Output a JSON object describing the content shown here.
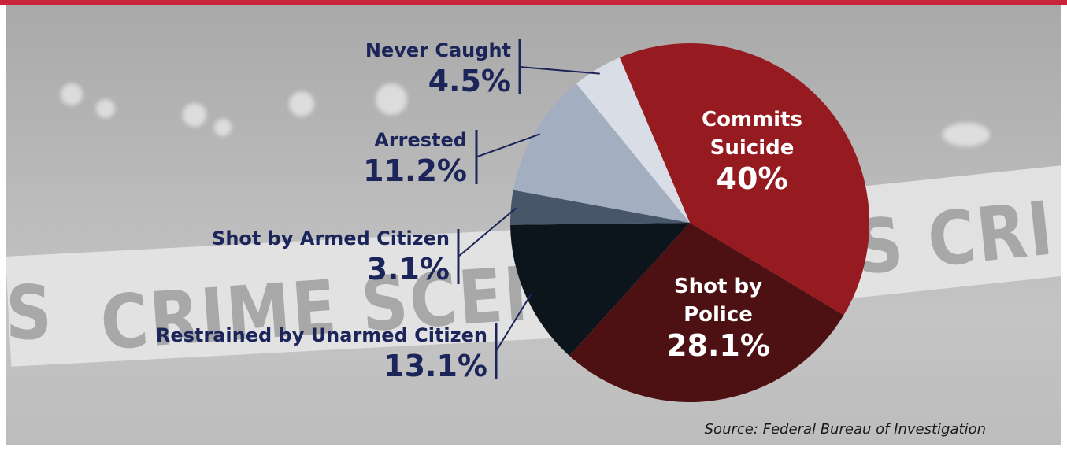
{
  "chart_data": {
    "type": "pie",
    "title": "",
    "slices": [
      {
        "label": "Commits Suicide",
        "label_lines": [
          "Commits",
          "Suicide"
        ],
        "value": 40,
        "display": "40%",
        "color": "#961b21"
      },
      {
        "label": "Shot by Police",
        "label_lines": [
          "Shot by",
          "Police"
        ],
        "value": 28.1,
        "display": "28.1%",
        "color": "#4d1113"
      },
      {
        "label": "Restrained by Unarmed Citizen",
        "label_lines": [
          "Restrained by Unarmed Citizen"
        ],
        "value": 13.1,
        "display": "13.1%",
        "color": "#0c141c"
      },
      {
        "label": "Shot by Armed Citizen",
        "label_lines": [
          "Shot by Armed Citizen"
        ],
        "value": 3.1,
        "display": "3.1%",
        "color": "#48566a"
      },
      {
        "label": "Arrested",
        "label_lines": [
          "Arrested"
        ],
        "value": 11.2,
        "display": "11.2%",
        "color": "#a3aec0"
      },
      {
        "label": "Never Caught",
        "label_lines": [
          "Never Caught"
        ],
        "value": 4.5,
        "display": "4.5%",
        "color": "#d9dde6"
      }
    ]
  },
  "background": {
    "tape_text": "CRIME SCENE DO",
    "tape_text_right": "S   CRI",
    "tape_text_left": "S"
  },
  "source": "Source: Federal Bureau of Investigation",
  "colors": {
    "accent": "#c7243a",
    "label_text": "#1c2559"
  }
}
